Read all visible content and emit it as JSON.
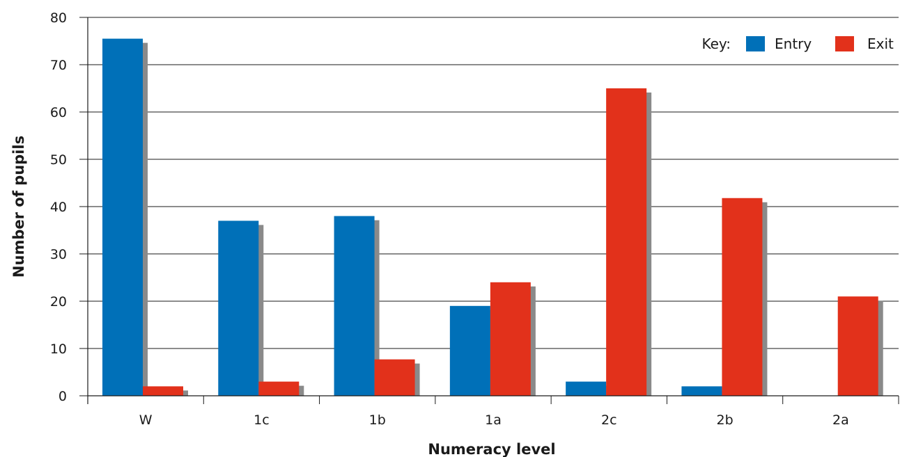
{
  "chart_data": {
    "type": "bar",
    "xlabel": "Numeracy level",
    "ylabel": "Number of pupils",
    "categories": [
      "W",
      "1c",
      "1b",
      "1a",
      "2c",
      "2b",
      "2a"
    ],
    "series": [
      {
        "name": "Entry",
        "color": "#0070b8",
        "values": [
          75.5,
          37,
          38,
          19,
          3,
          2,
          0
        ]
      },
      {
        "name": "Exit",
        "color": "#e2311b",
        "values": [
          2,
          3,
          7.7,
          24,
          65,
          41.8,
          21
        ]
      }
    ],
    "ylim": [
      0,
      80
    ],
    "yticks": [
      0,
      10,
      20,
      30,
      40,
      50,
      60,
      70,
      80
    ],
    "grid": true,
    "shadow_color": "#8a8a8a",
    "legend": {
      "title": "Key:",
      "position": "top-right"
    }
  }
}
